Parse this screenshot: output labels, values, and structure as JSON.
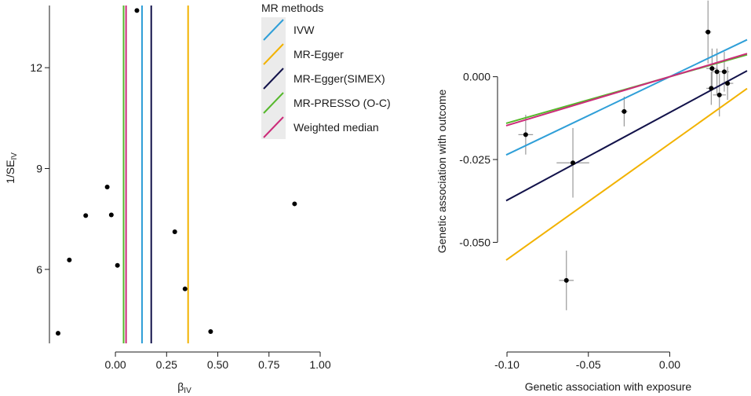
{
  "chart_data": [
    {
      "type": "scatter",
      "subtype": "funnel",
      "xlabel": "β",
      "xlabel_sub": "IV",
      "ylabel": "1/SE",
      "ylabel_sub": "IV",
      "xlim": [
        -0.28,
        1.0
      ],
      "ylim": [
        3.8,
        13.85
      ],
      "xticks": [
        0.0,
        0.25,
        0.5,
        0.75,
        1.0
      ],
      "xtick_labels": [
        "0.00",
        "0.25",
        "0.50",
        "0.75",
        "1.00"
      ],
      "yticks": [
        6,
        9,
        12
      ],
      "ytick_labels": [
        "6",
        "9",
        "12"
      ],
      "points": [
        {
          "x": 0.105,
          "y": 13.7
        },
        {
          "x": -0.04,
          "y": 8.45
        },
        {
          "x": 0.875,
          "y": 7.95
        },
        {
          "x": -0.145,
          "y": 7.6
        },
        {
          "x": -0.02,
          "y": 7.62
        },
        {
          "x": 0.29,
          "y": 7.12
        },
        {
          "x": -0.225,
          "y": 6.28
        },
        {
          "x": 0.01,
          "y": 6.12
        },
        {
          "x": 0.34,
          "y": 5.42
        },
        {
          "x": -0.28,
          "y": 4.1
        },
        {
          "x": 0.465,
          "y": 4.15
        }
      ],
      "method_lines": [
        {
          "method": "IVW",
          "x": 0.13
        },
        {
          "method": "MR-Egger",
          "x": 0.355
        },
        {
          "method": "MR-Egger(SIMEX)",
          "x": 0.175
        },
        {
          "method": "MR-PRESSO (O-C)",
          "x": 0.04
        },
        {
          "method": "Weighted median",
          "x": 0.052
        }
      ]
    },
    {
      "type": "scatter",
      "subtype": "mr_scatter",
      "xlabel": "Genetic association with exposure",
      "ylabel": "Genetic association with outcome",
      "xlim": [
        -0.1005,
        0.0475
      ],
      "ylim": [
        -0.0805,
        0.0215
      ],
      "xticks": [
        -0.1,
        -0.05,
        0.0
      ],
      "xtick_labels": [
        "-0.10",
        "-0.05",
        "0.00"
      ],
      "yticks": [
        -0.05,
        -0.025,
        0.0
      ],
      "ytick_labels": [
        "-0.050",
        "-0.025",
        "0.000"
      ],
      "points": [
        {
          "x": 0.0235,
          "y": 0.0135,
          "xerr": 0.002,
          "yerr": 0.0095
        },
        {
          "x": 0.026,
          "y": 0.0025,
          "xerr": 0.0035,
          "yerr": 0.006
        },
        {
          "x": 0.029,
          "y": 0.0015,
          "xerr": 0.003,
          "yerr": 0.007
        },
        {
          "x": 0.0335,
          "y": 0.0015,
          "xerr": 0.003,
          "yerr": 0.006
        },
        {
          "x": 0.0255,
          "y": -0.0035,
          "xerr": 0.003,
          "yerr": 0.005
        },
        {
          "x": 0.0355,
          "y": -0.002,
          "xerr": 0.0035,
          "yerr": 0.005
        },
        {
          "x": 0.0305,
          "y": -0.0055,
          "xerr": 0.004,
          "yerr": 0.0065
        },
        {
          "x": -0.028,
          "y": -0.0105,
          "xerr": 0.002,
          "yerr": 0.0045
        },
        {
          "x": -0.0885,
          "y": -0.0175,
          "xerr": 0.0045,
          "yerr": 0.006
        },
        {
          "x": -0.0595,
          "y": -0.026,
          "xerr": 0.01,
          "yerr": 0.0105
        },
        {
          "x": -0.0635,
          "y": -0.0615,
          "xerr": 0.0045,
          "yerr": 0.009
        }
      ],
      "fit_lines": [
        {
          "method": "IVW",
          "intercept": 0.0,
          "slope": 0.235
        },
        {
          "method": "MR-Egger",
          "intercept": -0.0202,
          "slope": 0.35
        },
        {
          "method": "MR-Egger(SIMEX)",
          "intercept": -0.0108,
          "slope": 0.265
        },
        {
          "method": "MR-PRESSO (O-C)",
          "intercept": 0.0,
          "slope": 0.14
        },
        {
          "method": "Weighted median",
          "intercept": 0.0,
          "slope": 0.147
        }
      ]
    }
  ],
  "legend": {
    "title": "MR methods",
    "items": [
      {
        "label": "IVW",
        "color": "#2f9fd8"
      },
      {
        "label": "MR-Egger",
        "color": "#f2b200"
      },
      {
        "label": "MR-Egger(SIMEX)",
        "color": "#12124a"
      },
      {
        "label": "MR-PRESSO (O-C)",
        "color": "#55b82b"
      },
      {
        "label": "Weighted median",
        "color": "#cc2b79"
      }
    ]
  },
  "colors": {
    "axis": "#1a1a1a",
    "point": "#000000",
    "errorbar": "#999999",
    "legend_bg": "#ebebeb"
  }
}
